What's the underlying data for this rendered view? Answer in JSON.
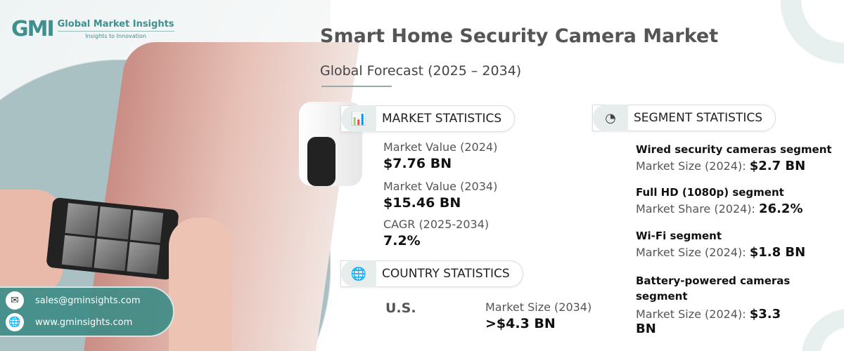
{
  "logo": {
    "mark": "GMI",
    "name": "Global Market Insights",
    "tagline": "Insights to Innovation"
  },
  "header": {
    "title": "Smart Home Security Camera Market",
    "subtitle": "Global Forecast (2025 – 2034)"
  },
  "market": {
    "heading": "MARKET STATISTICS",
    "icon": "chart-globe-icon",
    "items": [
      {
        "label": "Market Value (2024)",
        "value": "$7.76 BN"
      },
      {
        "label": "Market Value (2034)",
        "value": "$15.46 BN"
      },
      {
        "label": "CAGR (2025-2034)",
        "value": "7.2%"
      }
    ]
  },
  "country": {
    "heading": "COUNTRY STATISTICS",
    "icon": "globe-icon",
    "name": "U.S.",
    "label": "Market Size (2034)",
    "value": ">$4.3 BN"
  },
  "segment": {
    "heading": "SEGMENT STATISTICS",
    "icon": "pie-chart-icon",
    "items": [
      {
        "title": "Wired security cameras segment",
        "label": "Market Size (2024):",
        "value": "$2.7 BN"
      },
      {
        "title": "Full HD (1080p) segment",
        "label": "Market Share (2024):",
        "value": "26.2%"
      },
      {
        "title": "Wi-Fi segment",
        "label": "Market Size (2024):",
        "value": "$1.8 BN"
      },
      {
        "title": "Battery-powered cameras segment",
        "label": "Market Size (2024):",
        "value": "$3.3 BN"
      }
    ]
  },
  "contact": {
    "email": "sales@gminsights.com",
    "website": "www.gminsights.com"
  },
  "colors": {
    "teal": "#3f8c87",
    "title": "#555555"
  }
}
